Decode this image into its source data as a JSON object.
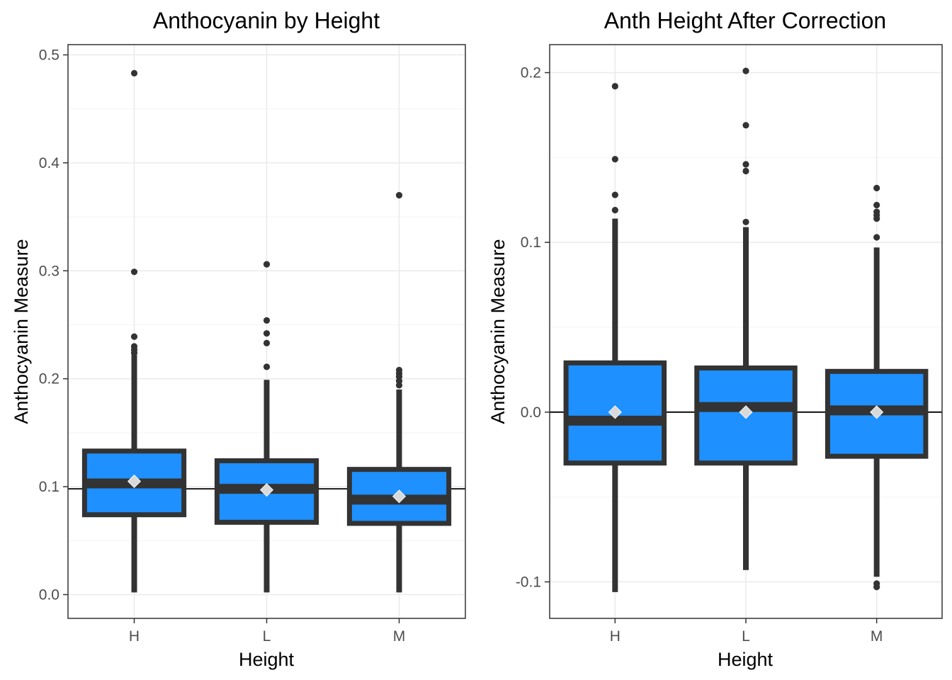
{
  "chart_data": [
    {
      "type": "boxplot",
      "title": "Anthocyanin by Height",
      "xlabel": "Height",
      "ylabel": "Anthocyanin Measure",
      "categories": [
        "H",
        "L",
        "M"
      ],
      "ylim": [
        -0.022,
        0.5095
      ],
      "yticks": [
        0.0,
        0.1,
        0.2,
        0.3,
        0.4,
        0.5
      ],
      "ytick_labels": [
        "0.0",
        "0.1",
        "0.2",
        "0.3",
        "0.4",
        "0.5"
      ],
      "hline": 0.098,
      "grid": true,
      "fill_color": "#1E90FF",
      "outline_color": "#333333",
      "mean_marker_color": "#D9D9D9",
      "boxes": [
        {
          "category": "H",
          "q1": 0.074,
          "median": 0.103,
          "q3": 0.133,
          "whisker_low": 0.002,
          "whisker_high": 0.222,
          "mean": 0.105,
          "outliers": [
            0.483,
            0.299,
            0.239,
            0.23,
            0.227,
            0.224
          ]
        },
        {
          "category": "L",
          "q1": 0.067,
          "median": 0.098,
          "q3": 0.124,
          "whisker_low": 0.002,
          "whisker_high": 0.199,
          "mean": 0.097,
          "outliers": [
            0.306,
            0.254,
            0.242,
            0.233,
            0.211
          ]
        },
        {
          "category": "M",
          "q1": 0.066,
          "median": 0.088,
          "q3": 0.116,
          "whisker_low": 0.002,
          "whisker_high": 0.19,
          "mean": 0.091,
          "outliers": [
            0.37,
            0.208,
            0.205,
            0.202,
            0.198,
            0.194
          ]
        }
      ]
    },
    {
      "type": "boxplot",
      "title": "Anth Height After Correction",
      "xlabel": "Height",
      "ylabel": "Anthocyanin Measure",
      "categories": [
        "H",
        "L",
        "M"
      ],
      "ylim": [
        -0.1215,
        0.2165
      ],
      "yticks": [
        -0.1,
        0.0,
        0.1,
        0.2
      ],
      "ytick_labels": [
        "-0.1",
        "0.0",
        "0.1",
        "0.2"
      ],
      "hline": 0.0,
      "grid": true,
      "fill_color": "#1E90FF",
      "outline_color": "#333333",
      "mean_marker_color": "#D9D9D9",
      "boxes": [
        {
          "category": "H",
          "q1": -0.03,
          "median": -0.005,
          "q3": 0.029,
          "whisker_low": -0.106,
          "whisker_high": 0.114,
          "mean": 0.0,
          "outliers": [
            0.192,
            0.149,
            0.128,
            0.119
          ]
        },
        {
          "category": "L",
          "q1": -0.03,
          "median": 0.003,
          "q3": 0.026,
          "whisker_low": -0.093,
          "whisker_high": 0.109,
          "mean": 0.0,
          "outliers": [
            0.201,
            0.169,
            0.146,
            0.142,
            0.112
          ]
        },
        {
          "category": "M",
          "q1": -0.026,
          "median": 0.001,
          "q3": 0.024,
          "whisker_low": -0.097,
          "whisker_high": 0.097,
          "mean": 0.0,
          "outliers": [
            0.132,
            0.122,
            0.118,
            0.116,
            0.114,
            0.103,
            -0.101,
            -0.103
          ]
        }
      ]
    }
  ]
}
